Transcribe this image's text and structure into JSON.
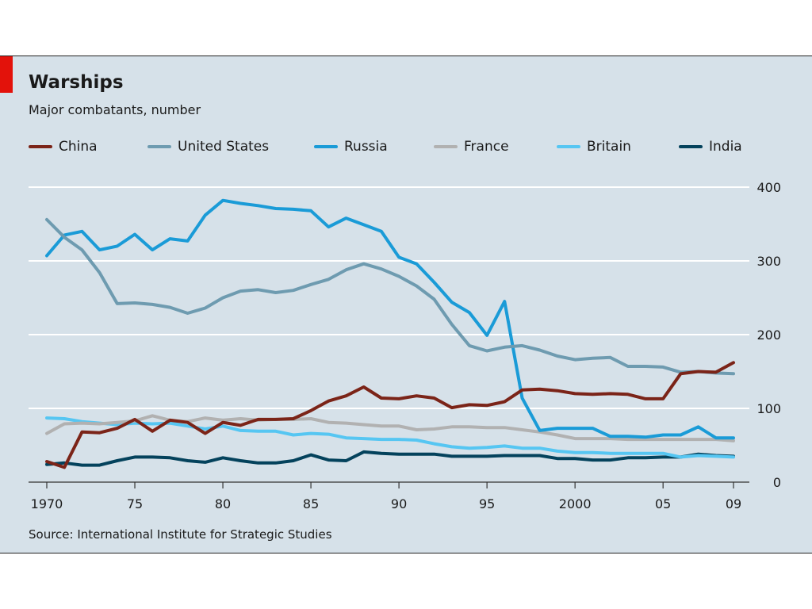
{
  "title": "Warships",
  "subtitle": "Major combatants, number",
  "source": "Source: International Institute for Strategic Studies",
  "colors": {
    "background": "#d6e1e9",
    "accent": "#e3120b"
  },
  "chart_data": {
    "type": "line",
    "title": "Warships",
    "subtitle": "Major combatants, number",
    "xlabel": "",
    "ylabel": "",
    "xlim": [
      1970,
      2009
    ],
    "ylim": [
      0,
      400
    ],
    "y_ticks": [
      0,
      100,
      200,
      300,
      400
    ],
    "x_ticks": [
      1970,
      1975,
      1980,
      1985,
      1990,
      1995,
      2000,
      2005,
      2009
    ],
    "x_tick_labels": [
      "1970",
      "75",
      "80",
      "85",
      "90",
      "95",
      "2000",
      "05",
      "09"
    ],
    "y_axis_side": "right",
    "grid": true,
    "legend_position": "top",
    "x": [
      1970,
      1971,
      1972,
      1973,
      1974,
      1975,
      1976,
      1977,
      1978,
      1979,
      1980,
      1981,
      1982,
      1983,
      1984,
      1985,
      1986,
      1987,
      1988,
      1989,
      1990,
      1991,
      1992,
      1993,
      1994,
      1995,
      1996,
      1997,
      1998,
      1999,
      2000,
      2001,
      2002,
      2003,
      2004,
      2005,
      2006,
      2007,
      2008,
      2009
    ],
    "series": [
      {
        "name": "China",
        "color": "#7b2418",
        "values": [
          28,
          20,
          68,
          67,
          73,
          85,
          69,
          84,
          81,
          66,
          81,
          77,
          85,
          85,
          86,
          97,
          110,
          117,
          129,
          114,
          113,
          117,
          114,
          101,
          105,
          104,
          109,
          125,
          126,
          124,
          120,
          119,
          120,
          119,
          113,
          113,
          147,
          150,
          149,
          162
        ]
      },
      {
        "name": "United States",
        "color": "#6e9bb0",
        "values": [
          356,
          332,
          315,
          284,
          242,
          243,
          241,
          237,
          229,
          236,
          250,
          259,
          261,
          257,
          260,
          268,
          275,
          288,
          296,
          289,
          279,
          266,
          248,
          214,
          185,
          178,
          183,
          185,
          179,
          171,
          166,
          168,
          169,
          157,
          157,
          156,
          149,
          150,
          148,
          147
        ]
      },
      {
        "name": "Russia",
        "color": "#1a9bd7",
        "values": [
          307,
          335,
          340,
          315,
          320,
          336,
          315,
          330,
          327,
          362,
          382,
          378,
          375,
          371,
          370,
          368,
          346,
          358,
          349,
          340,
          305,
          296,
          271,
          244,
          230,
          199,
          245,
          114,
          70,
          73,
          73,
          73,
          62,
          62,
          61,
          64,
          64,
          75,
          60,
          60
        ]
      },
      {
        "name": "France",
        "color": "#b1b1b1",
        "values": [
          66,
          79,
          80,
          79,
          81,
          83,
          90,
          84,
          82,
          87,
          84,
          86,
          84,
          85,
          85,
          86,
          81,
          80,
          78,
          76,
          76,
          71,
          72,
          75,
          75,
          74,
          74,
          71,
          68,
          64,
          59,
          59,
          59,
          58,
          58,
          58,
          58,
          58,
          58,
          56
        ]
      },
      {
        "name": "Britain",
        "color": "#56c6f2",
        "values": [
          87,
          86,
          82,
          80,
          78,
          80,
          79,
          80,
          76,
          72,
          76,
          70,
          69,
          69,
          64,
          66,
          65,
          60,
          59,
          58,
          58,
          57,
          52,
          48,
          46,
          47,
          49,
          46,
          46,
          42,
          40,
          40,
          39,
          39,
          39,
          39,
          34,
          36,
          35,
          34
        ]
      },
      {
        "name": "India",
        "color": "#04425c",
        "values": [
          24,
          26,
          23,
          23,
          29,
          34,
          34,
          33,
          29,
          27,
          33,
          29,
          26,
          26,
          29,
          37,
          30,
          29,
          41,
          39,
          38,
          38,
          38,
          35,
          35,
          35,
          36,
          36,
          36,
          32,
          32,
          30,
          30,
          33,
          33,
          34,
          34,
          38,
          36,
          35
        ]
      }
    ]
  }
}
